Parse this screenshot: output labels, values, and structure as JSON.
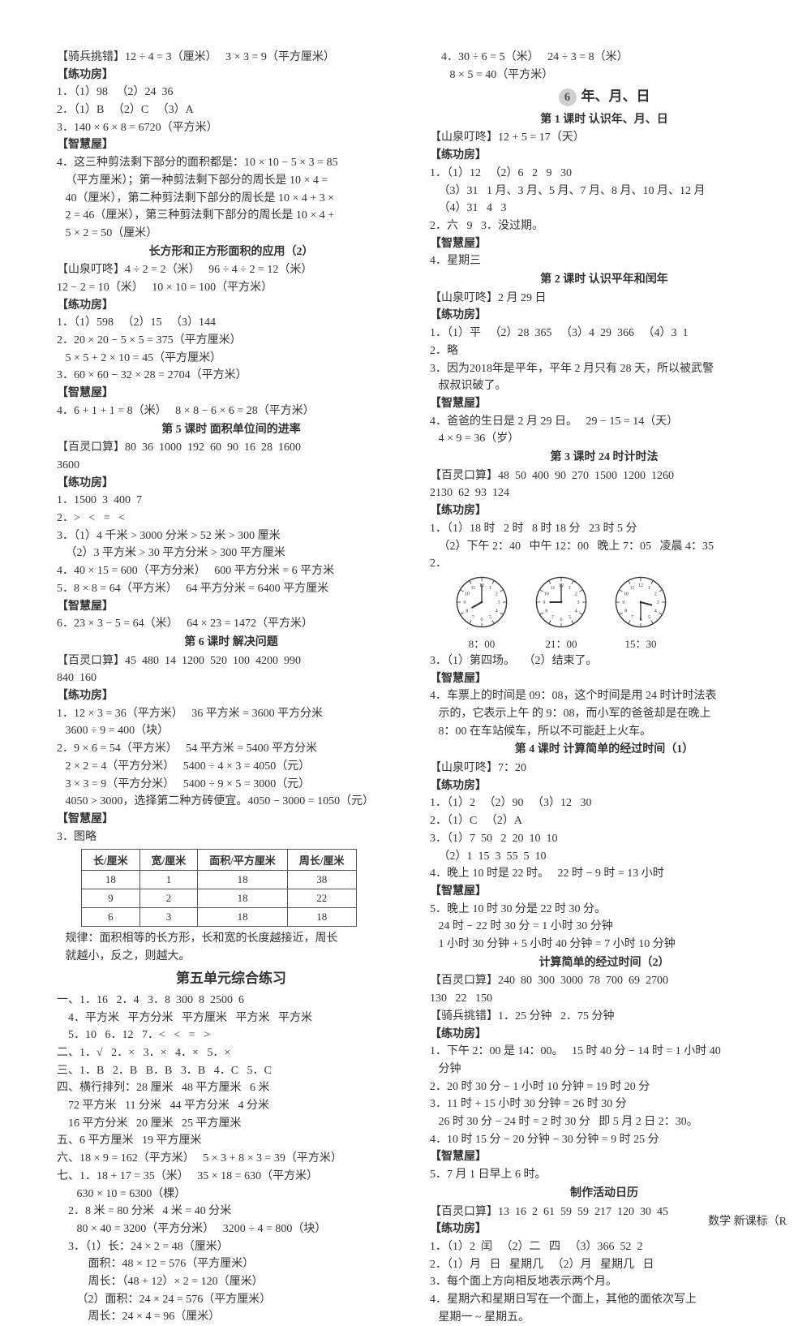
{
  "left": {
    "l0": "【骑兵挑错】12 ÷ 4 = 3（厘米）   3 × 3 = 9（平方厘米）",
    "l1": "【练功房】",
    "l2": "1．（1）98   （2）24  36",
    "l3": "2．（1）B   （2）C   （3）A",
    "l4": "3．140 × 6 × 8 = 6720（平方米）",
    "l5": "【智慧屋】",
    "l6": "4．这三种剪法剩下部分的面积都是：10 × 10 − 5 × 3 = 85",
    "l7": "   （平方厘米）；第一种剪法剩下部分的周长是 10 × 4 =",
    "l8": "   40（厘米），第二种剪法剩下部分的周长是 10 × 4 + 3 ×",
    "l9": "   2 = 46（厘米），第三种剪法剩下部分的周长是 10 × 4 +",
    "l10": "   5 × 2 = 50（厘米）",
    "h1": "长方形和正方形面积的应用（2）",
    "l11": "【山泉叮咚】4 ÷ 2 = 2（米）   96 ÷ 4 ÷ 2 = 12（米）",
    "l12": "12 − 2 = 10（米）   10 × 10 = 100（平方米）",
    "l13": "【练功房】",
    "l14": "1．（1）598   （2）15   （3）144",
    "l15": "2．20 × 20 − 5 × 5 = 375（平方厘米）",
    "l16": "   5 × 5 + 2 × 10 = 45（平方厘米）",
    "l17": "3．60 × 60 − 32 × 28 = 2704（平方米）",
    "l18": "【智慧屋】",
    "l19": "4．6 + 1 + 1 = 8（米）   8 × 8 − 6 × 6 = 28（平方米）",
    "h2": "第 5 课时   面积单位间的进率",
    "l20": "【百灵口算】80  36  1000  192  60  90  16  28  1600",
    "l21": "3600",
    "l22": "【练功房】",
    "l23": "1．1500  3  400  7",
    "l24": "2．>   <   =   <",
    "l25": "3．（1）4 千米 > 3000 分米 > 52 米 > 300 厘米",
    "l26": "   （2）3 平方米 > 30 平方分米 > 300 平方厘米",
    "l27": "4．40 × 15 = 600（平方分米）   600 平方分米 = 6 平方米",
    "l28": "5．8 × 8 = 64（平方米）   64 平方分米 = 6400 平方厘米",
    "l29": "【智慧屋】",
    "l30": "6．23 × 3 − 5 = 64（米）   64 × 23 = 1472（平方米）",
    "h3": "第 6 课时   解决问题",
    "l31": "【百灵口算】45  480  14  1200  520  100  4200  990",
    "l32": "840  160",
    "l33": "【练功房】",
    "l34": "1．12 × 3 = 36（平方米）   36 平方米 = 3600 平方分米",
    "l35": "   3600 ÷ 9 = 400（块）",
    "l36": "2．9 × 6 = 54（平方米）   54 平方米 = 5400 平方分米",
    "l37": "   2 × 2 = 4（平方分米）   5400 ÷ 4 × 3 = 4050（元）",
    "l38": "   3 × 3 = 9（平方分米）   5400 ÷ 9 × 5 = 3000（元）",
    "l39": "   4050 > 3000，选择第二种方砖便宜。4050 − 3000 = 1050（元）",
    "l40": "【智慧屋】",
    "l41": "3．图略",
    "l42": "   规律：面积相等的长方形，长和宽的长度越接近，周长",
    "l43": "   就越小，反之，则越大。",
    "h4": "第五单元综合练习",
    "l44": "一、1．16   2．4   3．8  300  8  2500  6",
    "l45": "    4．平方米   平方分米   平方厘米   平方米   平方米",
    "l46": "    5．10   6．12   7．<   <   =   >",
    "l47": "二、1．√   2．×   3．×   4．×   5．×",
    "l48": "三、1．B   2．B   B．B   3．B   4．C   5．C",
    "l49": "四、横行排列：28 厘米   48 平方厘米   6 米",
    "l50": "    72 平方米   11 分米   44 平方分米   4 分米",
    "l51": "    16 平方分米   20 厘米   25 平方厘米",
    "l52": "五、6 平方厘米   19 平方厘米",
    "l53": "六、18 × 9 = 162（平方米）   5 × 3 + 8 × 3 = 39（平方米）",
    "l54": "七、1．18 + 17 = 35（米）   35 × 18 = 630（平方米）",
    "l55": "       630 × 10 = 6300（棵）",
    "l56": "    2．8 米 = 80 分米   4 米 = 40 分米",
    "l57": "       80 × 40 = 3200（平方分米）   3200 ÷ 4 = 800（块）",
    "l58": "    3．（1）长：24 × 2 = 48（厘米）",
    "l59": "           面积：48 × 12 = 576（平方厘米）",
    "l60": "           周长：（48 + 12）× 2 = 120（厘米）",
    "l61": "       （2）面积：24 × 24 = 576（平方厘米）",
    "l62": "           周长：24 × 4 = 96（厘米）"
  },
  "table": {
    "headers": [
      "长/厘米",
      "宽/厘米",
      "面积/平方厘米",
      "周长/厘米"
    ],
    "rows": [
      [
        "18",
        "1",
        "18",
        "38"
      ],
      [
        "9",
        "2",
        "18",
        "22"
      ],
      [
        "6",
        "3",
        "18",
        "18"
      ]
    ]
  },
  "right": {
    "r0": "    4．30 ÷ 6 = 5（米）   24 ÷ 3 = 8（米）",
    "r1": "       8 × 5 = 40（平方米）",
    "unit6": "年、月、日",
    "r2": "第 1 课时   认识年、月、日",
    "r3": "【山泉叮咚】12 + 5 = 17（天）",
    "r4": "【练功房】",
    "r5": "1．（1）12   （2）6   2   9   30",
    "r6": "   （3）31   1 月、3 月、5 月、7 月、8 月、10 月、12 月",
    "r7": "   （4）31   4   3",
    "r8": "2．六   9   3．没过期。",
    "r9": "【智慧屋】",
    "r10": "4．星期三",
    "h5": "第 2 课时   认识平年和闰年",
    "r11": "【山泉叮咚】2 月 29 日",
    "r12": "【练功房】",
    "r13": "1．（1）平   （2）28  365   （3）4  29  366   （4）3  1",
    "r14": "2．略",
    "r15": "3．因为2018年是平年，平年 2 月只有 28 天，所以被武警",
    "r16": "   叔叔识破了。",
    "r17": "【智慧屋】",
    "r18": "4．爸爸的生日是 2 月 29 日。   29 − 15 = 14（天）",
    "r19": "   4 × 9 = 36（岁）",
    "h6": "第 3 课时   24 时计时法",
    "r20": "【百灵口算】48  50  400  90  270  1500  1200  1260",
    "r21": "2130  62  93  124",
    "r22": "【练功房】",
    "r23": "1．（1）18 时   2 时   8 时 18 分   23 时 5 分",
    "r24": "   （2）下午 2：40   中午 12：00   晚上 7：05   凌晨 4：35",
    "r25": "2．",
    "r26": "3．（1）第四场。   （2）结束了。",
    "r27": "【智慧屋】",
    "r28": "4．车票上的时间是 09：08，这个时间是用 24 时计时法表",
    "r29": "   示的，它表示上午 的 9：08，而小军的爸爸却是在晚上",
    "r30": "   8：00 在车站候车，所以不可能赶上火车。",
    "h7": "第 4 课时   计算简单的经过时间（1）",
    "r31": "【山泉叮咚】7：20",
    "r32": "【练功房】",
    "r33": "1．（1）2   （2）90   （3）12   30",
    "r34": "2．（1）C   （2）A",
    "r35": "3．（1）7  50   2  20  10  10",
    "r36": "   （2）1  15  3  55  5  10",
    "r37": "4．晚上 10 时是 22 时。   22 时 − 9 时 = 13 小时",
    "r38": "【智慧屋】",
    "r39": "5．晚上 10 时 30 分是 22 时 30 分。",
    "r40": "   24 时 − 22 时 30 分 = 1 小时 30 分钟",
    "r41": "   1 小时 30 分钟 + 5 小时 40 分钟 = 7 小时 10 分钟",
    "h8": "计算简单的经过时间（2）",
    "r42": "【百灵口算】240  80  300  3000  78  700  69  2700",
    "r43": "130   22   150",
    "r44": "【骑兵挑错】1．25 分钟   2．75 分钟",
    "r45": "【练功房】",
    "r46": "1．下午 2：00 是 14：00。   15 时 40 分 − 14 时 = 1 小时 40",
    "r47": "   分钟",
    "r48": "2．20 时 30 分 − 1 小时 10 分钟 = 19 时 20 分",
    "r49": "3．11 时 + 15 小时 30 分钟 = 26 时 30 分",
    "r50": "   26 时 30 分 − 24 时 = 2 时 30 分   即 5 月 2 日 2：30。",
    "r51": "4．10 时 15 分 − 20 分钟 − 30 分钟 = 9 时 25 分",
    "r52": "【智慧屋】",
    "r53": "5．7 月 1 日早上 6 时。",
    "h9": "制作活动日历",
    "r54": "【百灵口算】13  16  2  61  59  59  217  120  30  45",
    "r55": "【练功房】",
    "r56": "1．（1）2  闰   （2）二   四   （3）366  52  2",
    "r57": "2．（1）月   日   星期几   （2）月   星期几   日",
    "r58": "3．每个面上方向相反地表示两个月。",
    "r59": "4．星期六和星期日写在一个面上，其他的面依次写上",
    "r60": "   星期一 ~ 星期五。"
  },
  "clocks": [
    {
      "label": "8：00",
      "hour": 8,
      "min": 0
    },
    {
      "label": "21：00",
      "hour": 21,
      "min": 0
    },
    {
      "label": "15：30",
      "hour": 15,
      "min": 30
    }
  ],
  "footer": "数学   新课标（R"
}
